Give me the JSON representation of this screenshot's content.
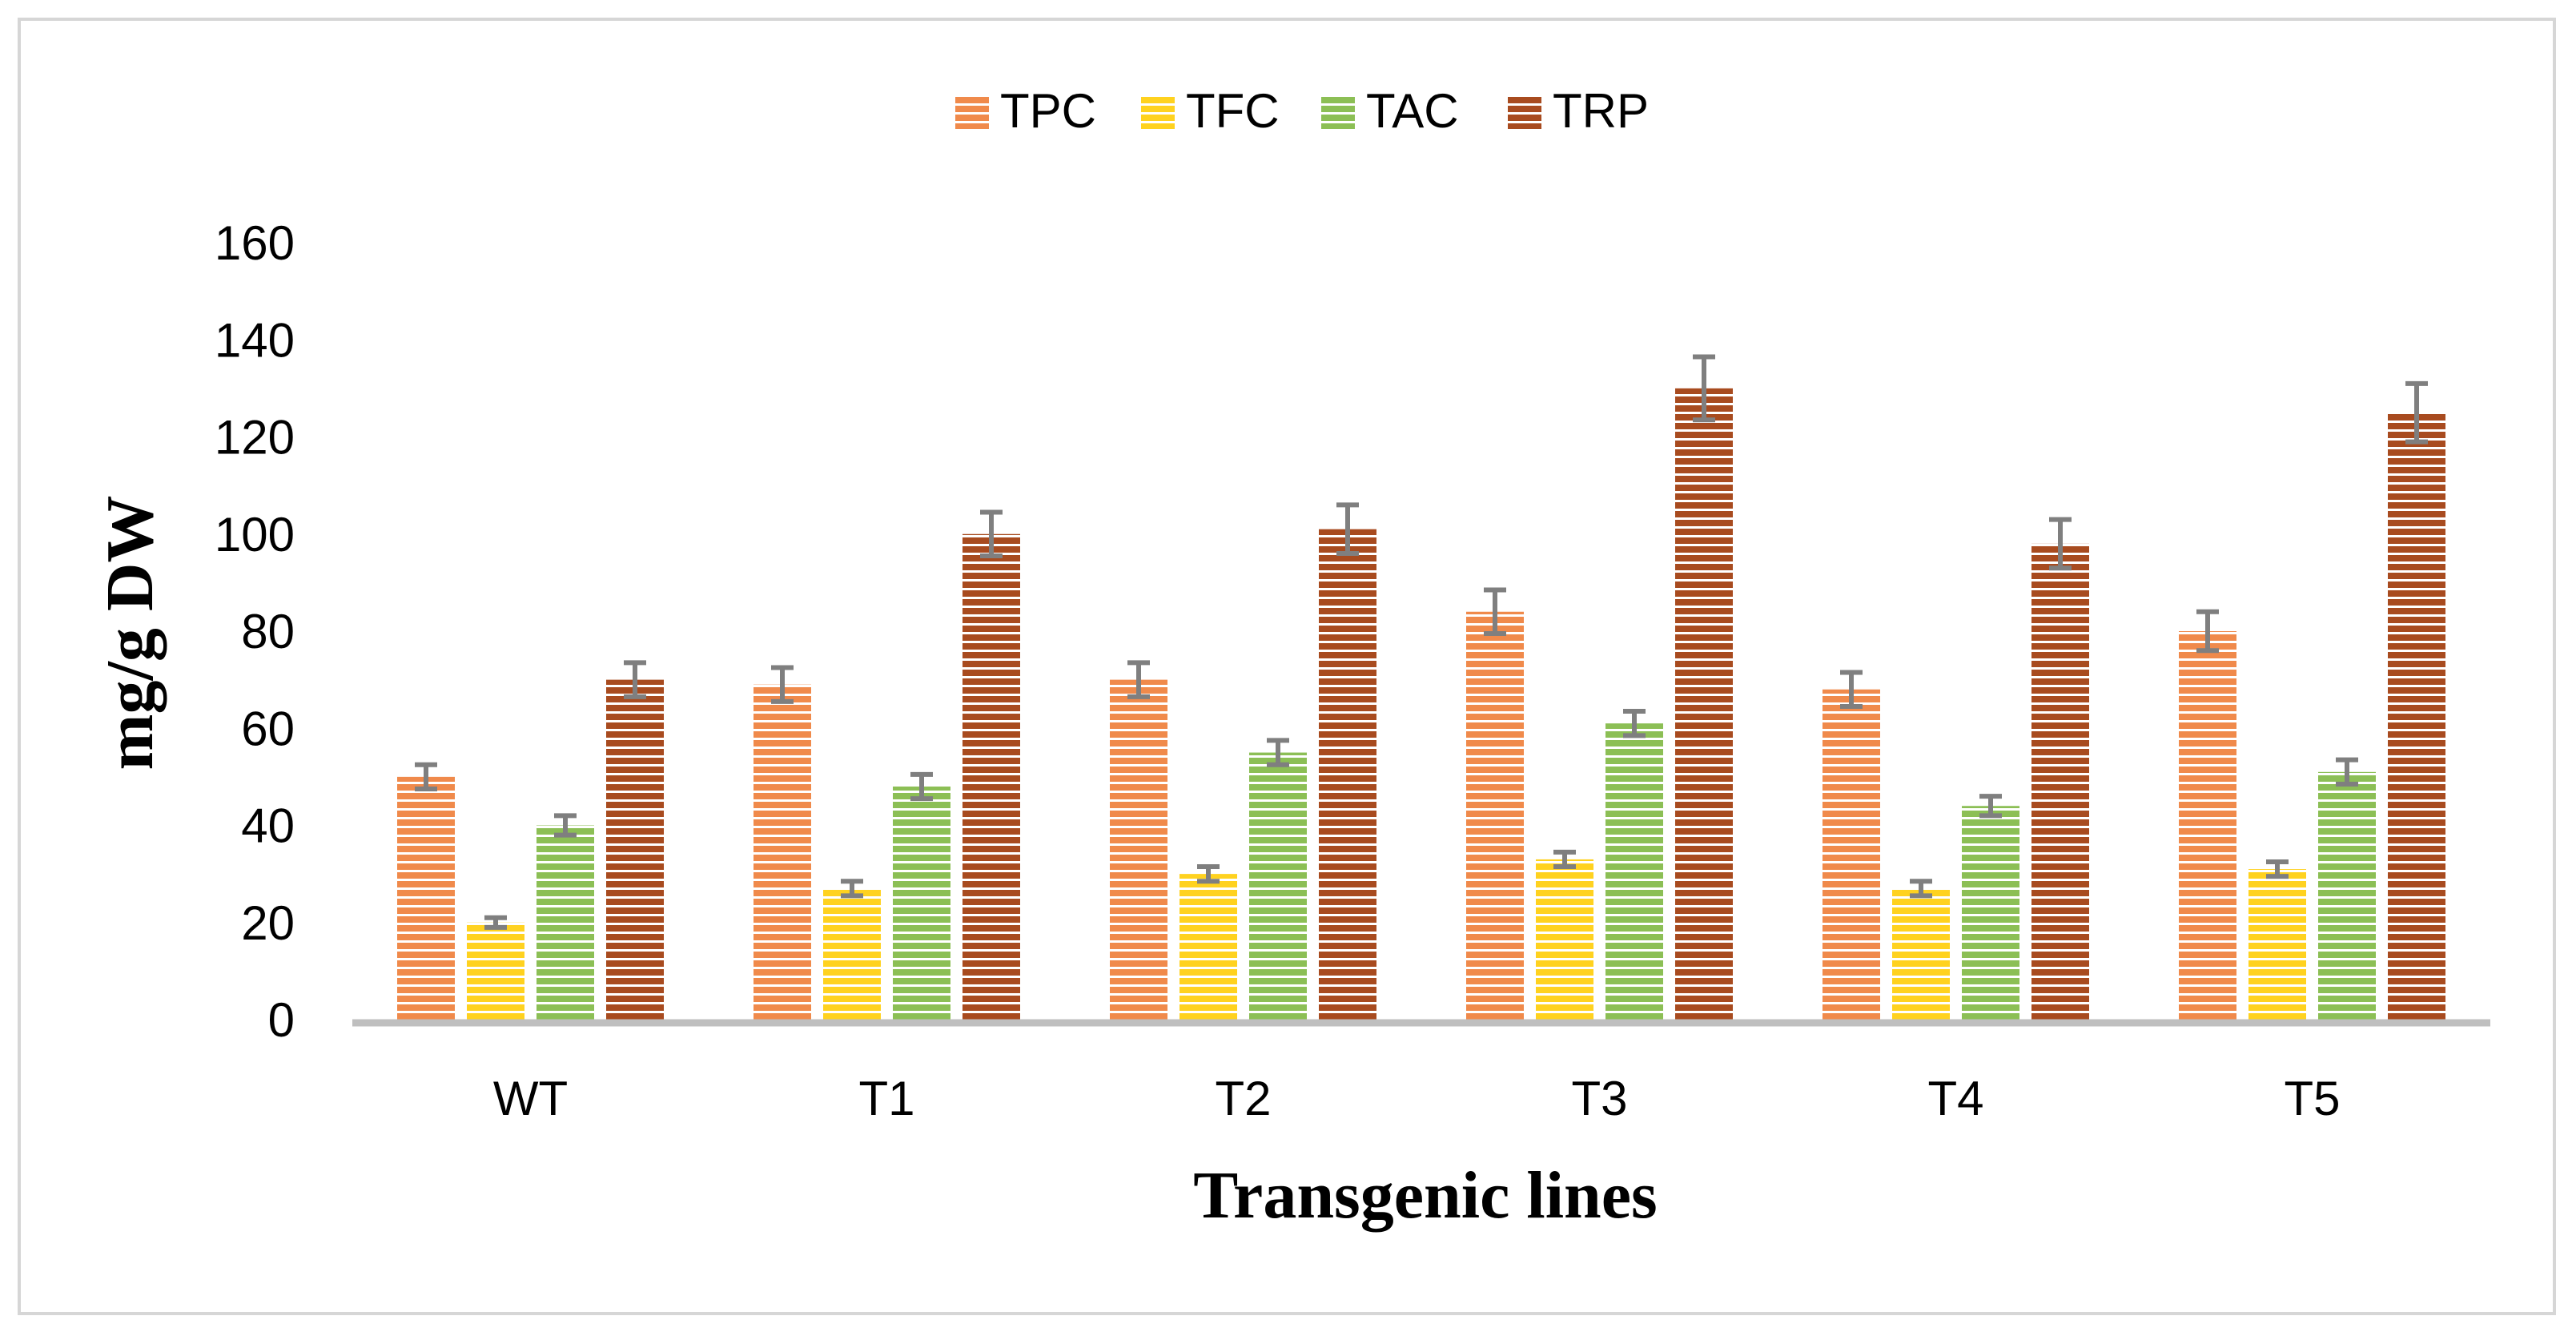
{
  "chart_data": {
    "type": "bar",
    "title": "",
    "xlabel": "Transgenic lines",
    "ylabel": "mg/g DW",
    "ylim": [
      0,
      160
    ],
    "yticks": [
      0,
      20,
      40,
      60,
      80,
      100,
      120,
      140,
      160
    ],
    "ytick_labels": [
      "0",
      "20",
      "40",
      "60",
      "80",
      "100",
      "120",
      "140",
      "160"
    ],
    "grid": false,
    "legend_position": "top-center",
    "categories": [
      "WT",
      "T1",
      "T2",
      "T3",
      "T4",
      "T5"
    ],
    "series": [
      {
        "name": "TPC",
        "color": "#f08a4b",
        "values": [
          50,
          69,
          70,
          84,
          68,
          80
        ],
        "errors": [
          2.5,
          3.5,
          3.5,
          4.5,
          3.5,
          4
        ]
      },
      {
        "name": "TFC",
        "color": "#ffd21f",
        "values": [
          20,
          27,
          30,
          33,
          27,
          31
        ],
        "errors": [
          1,
          1.5,
          1.5,
          1.5,
          1.5,
          1.5
        ]
      },
      {
        "name": "TAC",
        "color": "#8cbf55",
        "values": [
          40,
          48,
          55,
          61,
          44,
          51
        ],
        "errors": [
          2,
          2.5,
          2.5,
          2.5,
          2,
          2.5
        ]
      },
      {
        "name": "TRP",
        "color": "#a84b1f",
        "values": [
          70,
          100,
          101,
          130,
          98,
          125
        ],
        "errors": [
          3.5,
          4.5,
          5,
          6.5,
          5,
          6
        ]
      }
    ],
    "error_bar_color": "#7f7f7f",
    "axis_line_color": "#bfbfbf"
  }
}
